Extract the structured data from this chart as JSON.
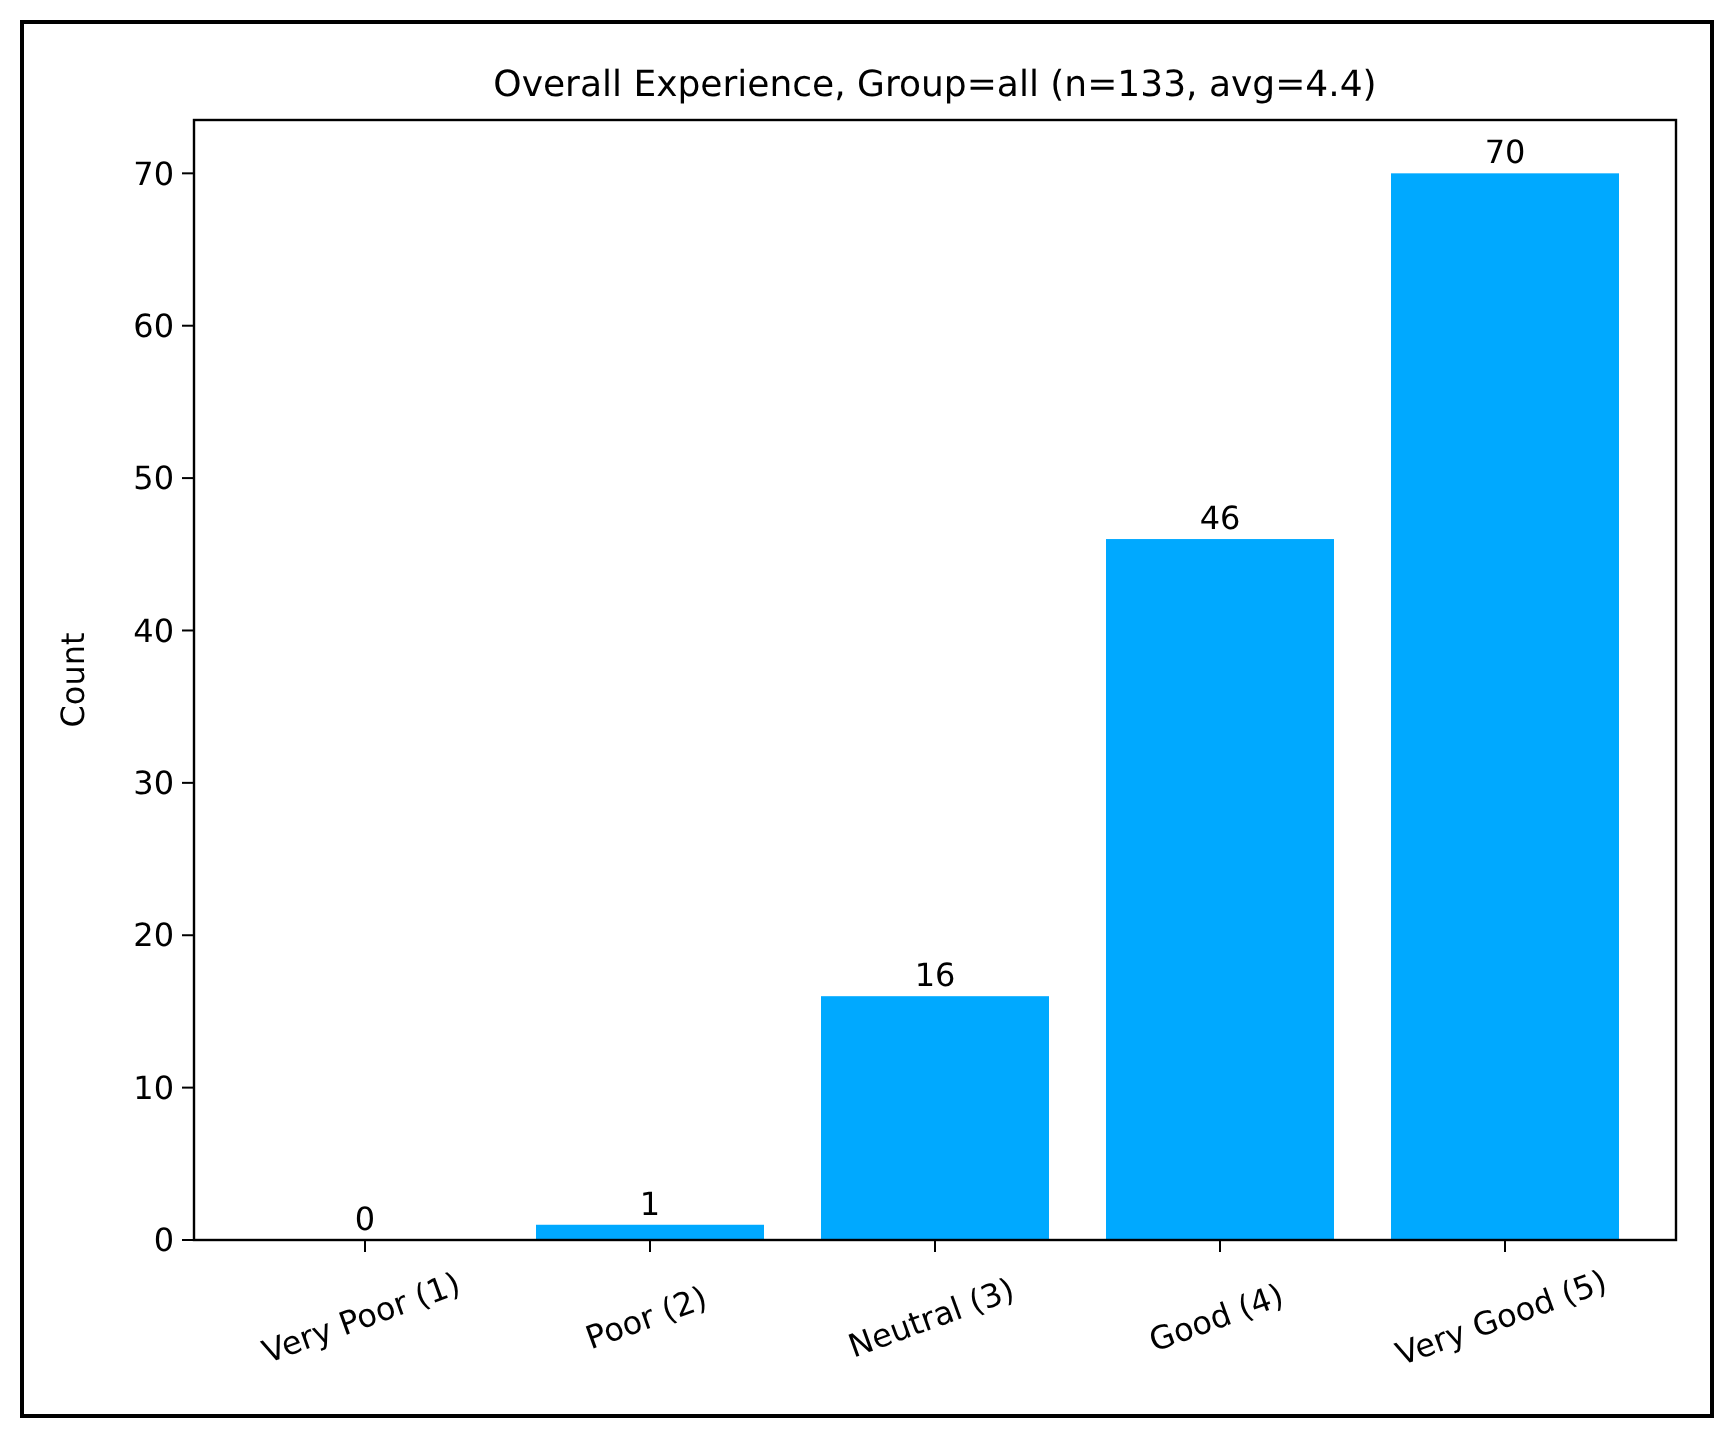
{
  "chart_data": {
    "type": "bar",
    "title": "Overall Experience, Group=all (n=133, avg=4.4)",
    "ylabel": "Count",
    "categories": [
      "Very Poor (1)",
      "Poor (2)",
      "Neutral (3)",
      "Good (4)",
      "Very Good (5)"
    ],
    "values": [
      0,
      1,
      16,
      46,
      70
    ],
    "color": "#00a9ff",
    "ylim": [
      0,
      73.5
    ],
    "yticks": [
      0,
      10,
      20,
      30,
      40,
      50,
      60,
      70
    ],
    "data_labels": true
  }
}
